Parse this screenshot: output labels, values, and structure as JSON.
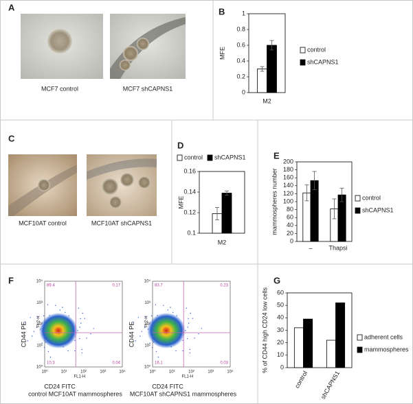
{
  "panel_labels": [
    "A",
    "B",
    "C",
    "D",
    "E",
    "F",
    "G"
  ],
  "image_captions": [
    "MCF7 control",
    "MCF7 shCAPNS1",
    "MCF10AT control",
    "MCF10AT shCAPNS1"
  ],
  "flow_ticks": [
    "10⁰",
    "10¹",
    "10²",
    "10³",
    "10⁴"
  ],
  "flow": [
    {
      "ylabel": "CD44 PE",
      "xlabel": "CD24 FITC",
      "y_channel": "FL2-H",
      "x_channel": "FL1-H",
      "caption": "control MCF10AT mammospheres",
      "quadrants": [
        89.4,
        0.17,
        10.3,
        0.04
      ]
    },
    {
      "ylabel": "CD44 PE",
      "xlabel": "CD24 FITC",
      "y_channel": "FL2-H",
      "x_channel": "FL1-H",
      "caption": "MCF10AT shCAPNS1 mammospheres",
      "quadrants": [
        83.7,
        0.23,
        16.1,
        0.03
      ]
    }
  ],
  "chart_data": [
    {
      "type": "bar",
      "ylabel": "MFE",
      "categories": [
        "M2"
      ],
      "legend": "right",
      "series": [
        {
          "name": "control",
          "color": "#ffffff",
          "values": [
            0.3
          ],
          "errors": [
            0.03
          ]
        },
        {
          "name": "shCAPNS1",
          "color": "#000000",
          "values": [
            0.6
          ],
          "errors": [
            0.06
          ]
        }
      ],
      "ylim": [
        0,
        1
      ],
      "yticks": [
        0,
        0.2,
        0.4,
        0.6,
        0.8,
        1
      ]
    },
    {
      "type": "bar",
      "ylabel": "MFE",
      "categories": [
        "M2"
      ],
      "legend": "top",
      "series": [
        {
          "name": "control",
          "color": "#ffffff",
          "values": [
            0.119
          ],
          "errors": [
            0.006
          ]
        },
        {
          "name": "shCAPNS1",
          "color": "#000000",
          "values": [
            0.139
          ],
          "errors": [
            0.002
          ]
        }
      ],
      "ylim": [
        0.1,
        0.16
      ],
      "yticks": [
        0.1,
        0.12,
        0.14,
        0.16
      ]
    },
    {
      "type": "bar",
      "ylabel": "mammospheres number",
      "categories": [
        "–",
        "Thapsi"
      ],
      "legend": "right",
      "series": [
        {
          "name": "control",
          "color": "#ffffff",
          "values": [
            122,
            82
          ],
          "errors": [
            20,
            25
          ]
        },
        {
          "name": "shCAPNS1",
          "color": "#000000",
          "values": [
            153,
            117
          ],
          "errors": [
            23,
            17
          ]
        }
      ],
      "ylim": [
        0,
        200
      ],
      "yticks": [
        0,
        20,
        40,
        60,
        80,
        100,
        120,
        140,
        160,
        180,
        200
      ]
    },
    {
      "type": "bar",
      "ylabel": "% of CD44 high CD24 low cells",
      "categories": [
        "control",
        "shCAPNS1"
      ],
      "legend": "right",
      "series": [
        {
          "name": "adherent cells",
          "color": "#ffffff",
          "values": [
            32,
            22
          ]
        },
        {
          "name": "mammospheres",
          "color": "#000000",
          "values": [
            39,
            52
          ]
        }
      ],
      "ylim": [
        0,
        60
      ],
      "yticks": [
        0,
        10,
        20,
        30,
        40,
        50,
        60
      ]
    }
  ]
}
